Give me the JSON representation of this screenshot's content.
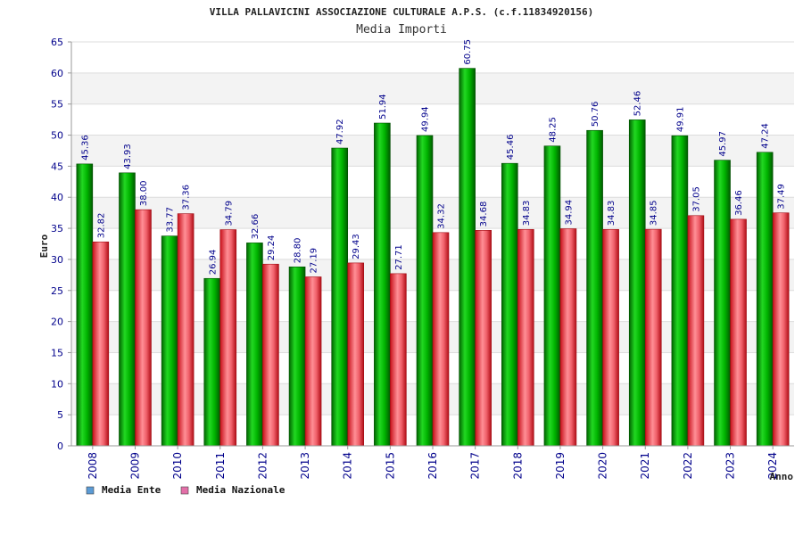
{
  "chart_data": {
    "type": "bar",
    "title": "VILLA PALLAVICINI ASSOCIAZIONE CULTURALE A.P.S. (c.f.11834920156)",
    "subtitle": "Media Importi",
    "xlabel": "Anno",
    "ylabel": "Euro",
    "ylim": [
      0,
      65
    ],
    "yticks": [
      0,
      5,
      10,
      15,
      20,
      25,
      30,
      35,
      40,
      45,
      50,
      55,
      60,
      65
    ],
    "grid": true,
    "legend_position": "bottom-left",
    "categories": [
      "2008",
      "2009",
      "2010",
      "2011",
      "2012",
      "2013",
      "2014",
      "2015",
      "2016",
      "2017",
      "2018",
      "2019",
      "2020",
      "2021",
      "2022",
      "2023",
      "2024"
    ],
    "series": [
      {
        "name": "Media Ente",
        "color": "#00a000",
        "legend_color": "#5b9bd5",
        "values": [
          45.36,
          43.93,
          33.77,
          26.94,
          32.66,
          28.8,
          47.92,
          51.94,
          49.94,
          60.75,
          45.46,
          48.25,
          50.76,
          52.46,
          49.91,
          45.97,
          47.24
        ],
        "labels": [
          "45.36",
          "43.93",
          "33.77",
          "26.94",
          "32.66",
          "28.80",
          "47.92",
          "51.94",
          "49.94",
          "60.75",
          "45.46",
          "48.25",
          "50.76",
          "52.46",
          "49.91",
          "45.97",
          "47.24"
        ]
      },
      {
        "name": "Media Nazionale",
        "color": "#e8202a",
        "legend_color": "#e36fa8",
        "values": [
          32.82,
          38.0,
          37.36,
          34.79,
          29.24,
          27.19,
          29.43,
          27.71,
          34.32,
          34.68,
          34.83,
          34.94,
          34.83,
          34.85,
          37.05,
          36.46,
          37.49
        ],
        "labels": [
          "32.82",
          "38.00",
          "37.36",
          "34.79",
          "29.24",
          "27.19",
          "29.43",
          "27.71",
          "34.32",
          "34.68",
          "34.83",
          "34.94",
          "34.83",
          "34.85",
          "37.05",
          "36.46",
          "37.49"
        ]
      }
    ]
  }
}
